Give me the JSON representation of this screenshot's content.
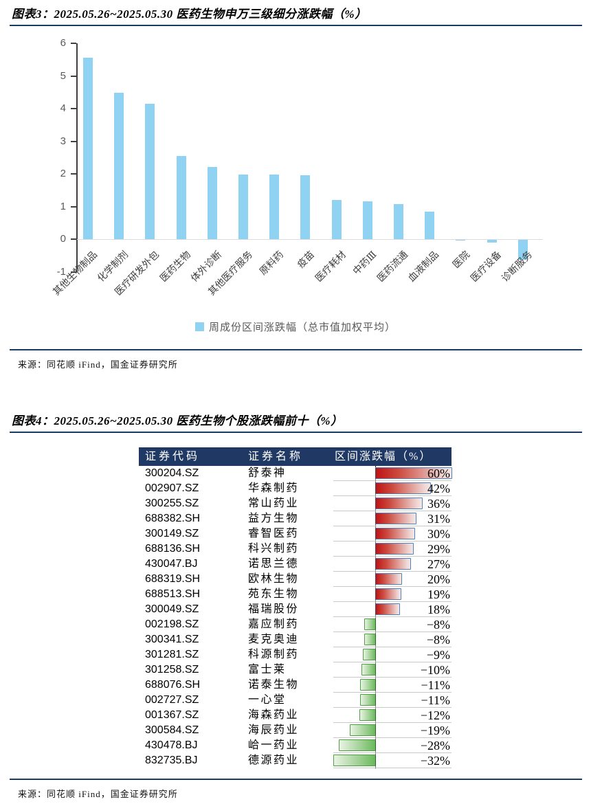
{
  "figure3": {
    "title": "图表3：2025.05.26~2025.05.30 医药生物申万三级细分涨跌幅（%）",
    "legend": "周成份区间涨跌幅（总市值加权平均）",
    "source": "来源：同花顺 iFind，国金证券研究所",
    "bar_color": "#90D2F1"
  },
  "chart_data": {
    "type": "bar",
    "title": "2025.05.26~2025.05.30 医药生物申万三级细分涨跌幅（%）",
    "categories": [
      "其他生物制品",
      "化学制剂",
      "医疗研发外包",
      "医药生物",
      "体外诊断",
      "其他医疗服务",
      "原料药",
      "疫苗",
      "医疗耗材",
      "中药Ⅲ",
      "医药流通",
      "血液制品",
      "医院",
      "医疗设备",
      "诊断服务"
    ],
    "values": [
      5.55,
      4.48,
      4.15,
      2.54,
      2.21,
      1.97,
      1.97,
      1.96,
      1.19,
      1.15,
      1.07,
      0.84,
      -0.02,
      -0.09,
      -0.61
    ],
    "xlabel": "",
    "ylabel": "",
    "ylim": [
      -1,
      6
    ],
    "ytick_step": 1,
    "grid": "zero-line-only",
    "legend_entries": [
      "周成份区间涨跌幅（总市值加权平均）"
    ],
    "legend_position": "bottom",
    "bar_color": "#90D2F1"
  },
  "figure4": {
    "title": "图表4：2025.05.26~2025.05.30 医药生物个股涨跌幅前十（%）",
    "source": "来源：同花顺 iFind，国金证券研究所",
    "table": {
      "columns": [
        "证券代码",
        "证券名称",
        "区间涨跌幅（%）"
      ],
      "bar_axis": {
        "min": -32,
        "max": 60
      },
      "positive_bar_color": "#C00000",
      "positive_bar_border": "#4F81BD",
      "negative_bar_color": "#69BA5C",
      "negative_bar_border": "#4E9D43",
      "header_bg": "#203864",
      "rows": [
        {
          "code": "300204.SZ",
          "name": "舒泰神",
          "value": 60,
          "display": "60%"
        },
        {
          "code": "002907.SZ",
          "name": "华森制药",
          "value": 42,
          "display": "42%"
        },
        {
          "code": "300255.SZ",
          "name": "常山药业",
          "value": 36,
          "display": "36%"
        },
        {
          "code": "688382.SH",
          "name": "益方生物",
          "value": 31,
          "display": "31%"
        },
        {
          "code": "300149.SZ",
          "name": "睿智医药",
          "value": 30,
          "display": "30%"
        },
        {
          "code": "688136.SH",
          "name": "科兴制药",
          "value": 29,
          "display": "29%"
        },
        {
          "code": "430047.BJ",
          "name": "诺思兰德",
          "value": 27,
          "display": "27%"
        },
        {
          "code": "688319.SH",
          "name": "欧林生物",
          "value": 20,
          "display": "20%"
        },
        {
          "code": "688513.SH",
          "name": "苑东生物",
          "value": 19,
          "display": "19%"
        },
        {
          "code": "300049.SZ",
          "name": "福瑞股份",
          "value": 18,
          "display": "18%"
        },
        {
          "code": "002198.SZ",
          "name": "嘉应制药",
          "value": -8,
          "display": "−8%"
        },
        {
          "code": "300341.SZ",
          "name": "麦克奥迪",
          "value": -8,
          "display": "−8%"
        },
        {
          "code": "301281.SZ",
          "name": "科源制药",
          "value": -9,
          "display": "−9%"
        },
        {
          "code": "301258.SZ",
          "name": "富士莱",
          "value": -10,
          "display": "−10%"
        },
        {
          "code": "688076.SH",
          "name": "诺泰生物",
          "value": -11,
          "display": "−11%"
        },
        {
          "code": "002727.SZ",
          "name": "一心堂",
          "value": -11,
          "display": "−11%"
        },
        {
          "code": "001367.SZ",
          "name": "海森药业",
          "value": -12,
          "display": "−12%"
        },
        {
          "code": "300584.SZ",
          "name": "海辰药业",
          "value": -19,
          "display": "−19%"
        },
        {
          "code": "430478.BJ",
          "name": "峆一药业",
          "value": -28,
          "display": "−28%"
        },
        {
          "code": "832735.BJ",
          "name": "德源药业",
          "value": -32,
          "display": "−32%"
        }
      ]
    }
  }
}
